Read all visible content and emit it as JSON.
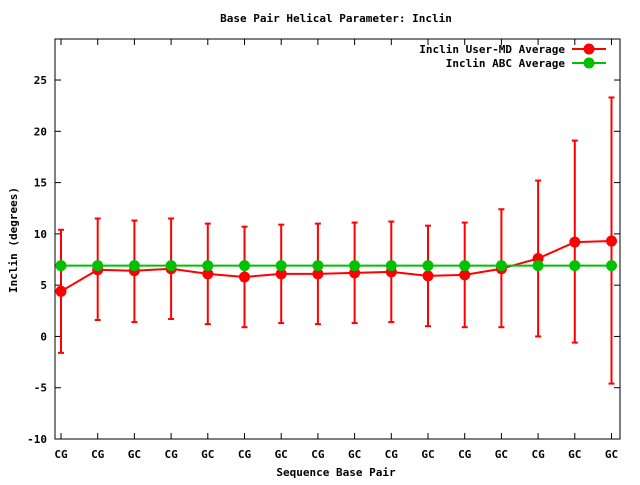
{
  "chart_data": {
    "type": "line",
    "title": "Base Pair Helical Parameter: Inclin",
    "xlabel": "Sequence Base Pair",
    "ylabel": "Inclin (degrees)",
    "ylim": [
      -10,
      29
    ],
    "yticks": [
      -10,
      -5,
      0,
      5,
      10,
      15,
      20,
      25
    ],
    "categories": [
      "CG",
      "CG",
      "GC",
      "CG",
      "GC",
      "CG",
      "GC",
      "CG",
      "GC",
      "CG",
      "GC",
      "CG",
      "GC",
      "CG",
      "GC",
      "GC"
    ],
    "grid": false,
    "legend_position": "top-right",
    "series": [
      {
        "name": "Inclin User-MD Average",
        "color": "#ff0000",
        "marker_color": "#ff0000",
        "values": [
          4.4,
          6.5,
          6.4,
          6.6,
          6.1,
          5.8,
          6.1,
          6.1,
          6.2,
          6.3,
          5.9,
          6.0,
          6.6,
          7.6,
          9.2,
          9.3
        ],
        "error_low": [
          -1.6,
          1.6,
          1.4,
          1.7,
          1.2,
          0.9,
          1.3,
          1.2,
          1.3,
          1.4,
          1.0,
          0.9,
          0.9,
          0.0,
          -0.6,
          -4.6
        ],
        "error_high": [
          10.4,
          11.5,
          11.3,
          11.5,
          11.0,
          10.7,
          10.9,
          11.0,
          11.1,
          11.2,
          10.8,
          11.1,
          12.4,
          15.2,
          19.1,
          23.3
        ]
      },
      {
        "name": "Inclin ABC Average",
        "color": "#00c000",
        "marker_color": "#00c000",
        "values": [
          6.9,
          6.9,
          6.9,
          6.9,
          6.9,
          6.9,
          6.9,
          6.9,
          6.9,
          6.9,
          6.9,
          6.9,
          6.9,
          6.9,
          6.9,
          6.9
        ]
      }
    ]
  }
}
